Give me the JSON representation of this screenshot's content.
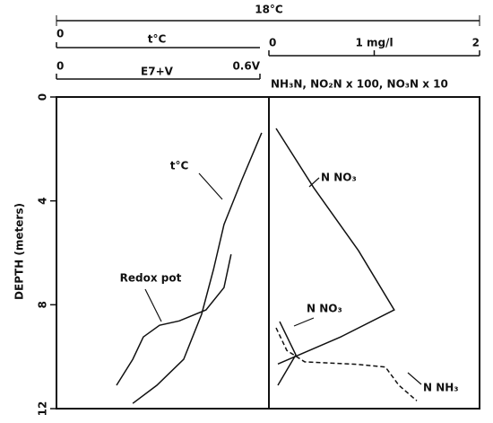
{
  "chart_data": [
    {
      "type": "line",
      "title": "18°C",
      "ylabel": "DEPTH (meters)",
      "ylim": [
        0,
        12
      ],
      "yticks": [
        0,
        4,
        8,
        12
      ],
      "xlim": [
        0,
        0.6
      ],
      "xticks": [
        0,
        {
          "value": 0.6,
          "label": "0.6V"
        }
      ],
      "xlabel": "E7+V",
      "x2label": "t°C",
      "x2ticks": [
        0
      ],
      "series": [
        {
          "name": "t°C",
          "color": "#111111",
          "dashed": false,
          "x": [
            0.605,
            0.547,
            0.494,
            0.463,
            0.428,
            0.375,
            0.296,
            0.225
          ],
          "values": [
            1.38,
            3.18,
            4.91,
            6.64,
            8.37,
            10.1,
            11.1,
            11.8
          ]
        },
        {
          "name": "Redox pot",
          "color": "#111111",
          "dashed": false,
          "x": [
            0.515,
            0.494,
            0.441,
            0.362,
            0.304,
            0.256,
            0.225,
            0.177
          ],
          "values": [
            6.06,
            7.34,
            8.2,
            8.62,
            8.79,
            9.24,
            10.1,
            11.1
          ]
        }
      ]
    },
    {
      "type": "line",
      "xlabel": "NH₃N, NO₂N x 100, NO₃N x 10",
      "ylim": [
        0,
        12
      ],
      "xlim": [
        0,
        2
      ],
      "xticks": [
        0,
        {
          "value": 1,
          "label": "1 mg/l"
        },
        2
      ],
      "series": [
        {
          "name": "N NO₃",
          "color": "#111111",
          "dashed": false,
          "x": [
            0.068,
            0.426,
            0.851,
            1.19,
            0.681,
            0.085
          ],
          "values": [
            1.21,
            3.5,
            5.92,
            8.2,
            9.24,
            10.28
          ]
        },
        {
          "name": "N NO₃",
          "color": "#111111",
          "dashed": false,
          "x": [
            0.102,
            0.255,
            0.085
          ],
          "values": [
            8.65,
            9.93,
            11.1
          ]
        },
        {
          "name": "N NH₃",
          "color": "#111111",
          "dashed": true,
          "x": [
            0.068,
            0.17,
            0.34,
            0.851,
            1.106,
            1.234,
            1.404
          ],
          "values": [
            8.89,
            9.76,
            10.2,
            10.3,
            10.4,
            11.1,
            11.7
          ]
        }
      ]
    }
  ]
}
